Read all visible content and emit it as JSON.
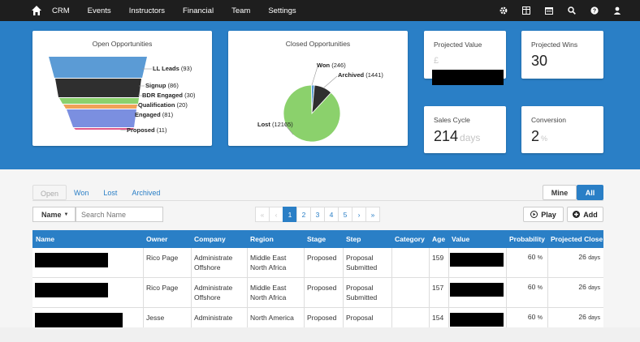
{
  "nav": {
    "items": [
      "CRM",
      "Events",
      "Instructors",
      "Financial",
      "Team",
      "Settings"
    ],
    "icons": [
      "gear-icon",
      "columns-icon",
      "calendar-icon",
      "search-icon",
      "help-icon",
      "user-icon"
    ]
  },
  "open_opportunities": {
    "title": "Open Opportunities",
    "stages": [
      {
        "label": "LL Leads",
        "count": "(93)",
        "color": "#5b9bd5"
      },
      {
        "label": "Signup",
        "count": "(86)",
        "color": "#2f2f2f"
      },
      {
        "label": "BDR Engaged",
        "count": "(30)",
        "color": "#8bd16c"
      },
      {
        "label": "Qualification",
        "count": "(20)",
        "color": "#f0a257"
      },
      {
        "label": "Engaged",
        "count": "(81)",
        "color": "#7b8fe0"
      },
      {
        "label": "Proposed",
        "count": "(11)",
        "color": "#e05a8a"
      }
    ]
  },
  "closed_opportunities": {
    "title": "Closed Opportunities",
    "chart_data": {
      "type": "pie",
      "slices": [
        {
          "label": "Won",
          "value": 246,
          "color": "#5b9bd5"
        },
        {
          "label": "Archived",
          "value": 1441,
          "color": "#2f2f2f"
        },
        {
          "label": "Lost",
          "value": 12165,
          "color": "#8bd16c"
        }
      ],
      "labels": [
        "Won (246)",
        "Archived (1441)",
        "Lost (12165)"
      ]
    }
  },
  "kpis": {
    "projected_value": {
      "title": "Projected Value",
      "symbol": "£"
    },
    "projected_wins": {
      "title": "Projected Wins",
      "value": "30"
    },
    "sales_cycle": {
      "title": "Sales Cycle",
      "value": "214",
      "unit": "days"
    },
    "conversion": {
      "title": "Conversion",
      "value": "2",
      "unit": "%"
    }
  },
  "tabs": [
    "Open",
    "Won",
    "Lost",
    "Archived"
  ],
  "scope": {
    "mine": "Mine",
    "all": "All"
  },
  "filter": {
    "name_label": "Name",
    "search_placeholder": "Search Name"
  },
  "pagination": {
    "first": "«",
    "prev": "‹",
    "pages": [
      "1",
      "2",
      "3",
      "4",
      "5"
    ],
    "next": "›",
    "last": "»",
    "current": "1"
  },
  "actions": {
    "play": "Play",
    "add": "Add"
  },
  "table": {
    "columns": [
      "Name",
      "Owner",
      "Company",
      "Region",
      "Stage",
      "Step",
      "Category",
      "Age",
      "Value",
      "Probability",
      "Projected Close"
    ],
    "rows": [
      {
        "owner": "Rico Page",
        "company": [
          "Administrate",
          "Offshore"
        ],
        "region": [
          "Middle East",
          "North Africa"
        ],
        "stage": "Proposed",
        "step": [
          "Proposal",
          "Submitted"
        ],
        "category": "",
        "age": "159",
        "probability": "60",
        "close": "26"
      },
      {
        "owner": "Rico Page",
        "company": [
          "Administrate",
          "Offshore"
        ],
        "region": [
          "Middle East",
          "North Africa"
        ],
        "stage": "Proposed",
        "step": [
          "Proposal",
          "Submitted"
        ],
        "category": "",
        "age": "157",
        "probability": "60",
        "close": "26"
      },
      {
        "owner": "Jesse",
        "company": [
          "Administrate",
          ""
        ],
        "region": [
          "North America",
          ""
        ],
        "stage": "Proposed",
        "step": [
          "Proposal",
          ""
        ],
        "category": "",
        "age": "154",
        "probability": "60",
        "close": "26"
      }
    ],
    "prob_unit": "%",
    "close_unit": "days"
  }
}
